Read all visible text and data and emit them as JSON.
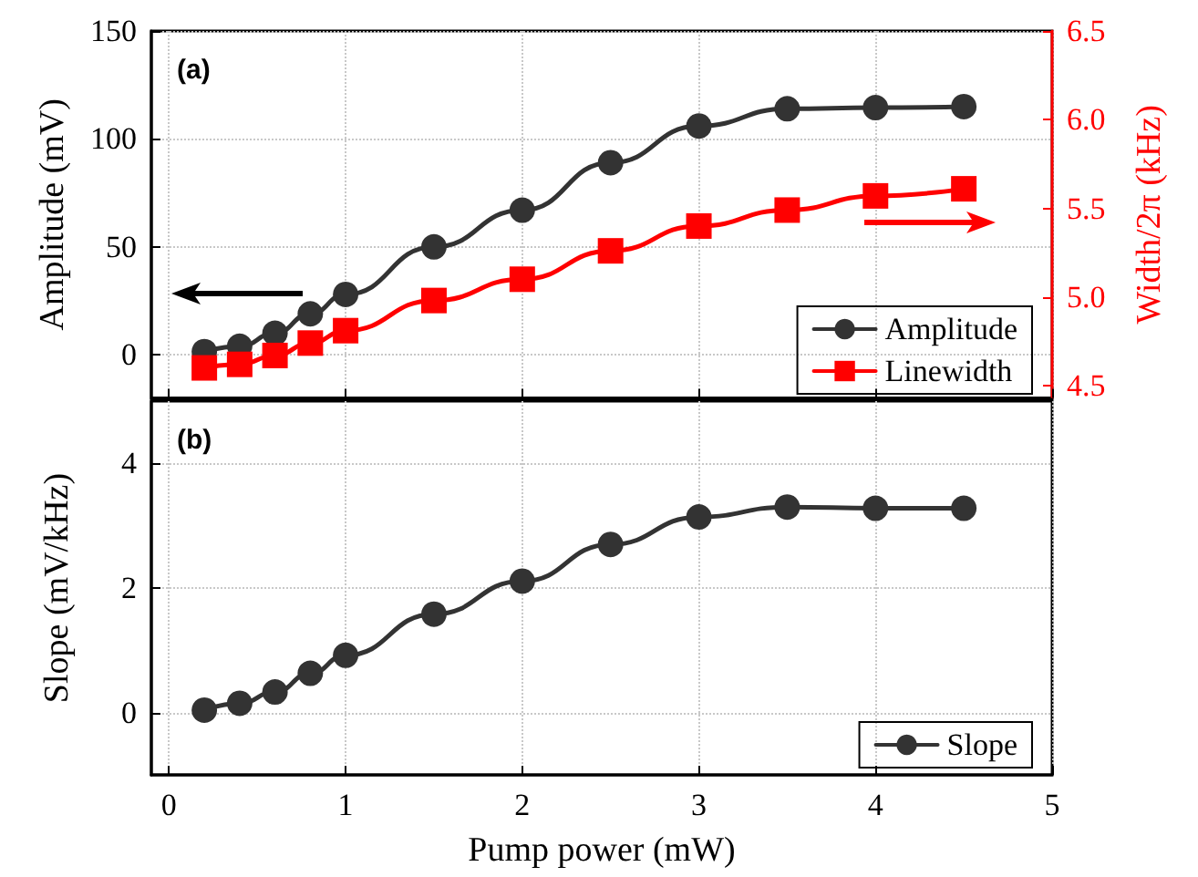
{
  "chart_data": [
    {
      "type": "line",
      "title": "(a)",
      "ylabel": "Amplitude (mV)",
      "y2label": "Width/2π (kHz)",
      "x": [
        0.2,
        0.4,
        0.6,
        0.8,
        1,
        1.5,
        2,
        2.5,
        3,
        3.5,
        4,
        4.5
      ],
      "series": [
        {
          "name": "Amplitude",
          "color": "#333333",
          "marker": "circle",
          "values": [
            1.5,
            4,
            10,
            19,
            28,
            50,
            67,
            89,
            106,
            114,
            114.5,
            115
          ]
        },
        {
          "name": "Linewidth",
          "color": "#ff0000",
          "marker": "square",
          "axis": "y2",
          "values": [
            4.6,
            4.62,
            4.67,
            4.74,
            4.81,
            4.98,
            5.1,
            5.26,
            5.4,
            5.49,
            5.57,
            5.61
          ]
        }
      ],
      "xlim": [
        -0.1,
        5
      ],
      "xticks": [
        0,
        1,
        2,
        3,
        4,
        5
      ],
      "ylim": [
        -20,
        150
      ],
      "yticks": [
        0,
        50,
        100,
        150
      ],
      "y2lim": [
        4.43,
        6.5
      ],
      "y2ticks": [
        4.5,
        {
          "value": 5,
          "label": "5.0"
        },
        5.5,
        {
          "value": 6,
          "label": "6.0"
        },
        6.5
      ],
      "tick_labels": "y",
      "grid": true,
      "legend": "bottom right",
      "line_style": "solid"
    },
    {
      "type": "line",
      "title": "(b)",
      "xlabel": "Pump power (mW)",
      "ylabel": "Slope (mV/kHz)",
      "x": [
        0.2,
        0.4,
        0.6,
        0.8,
        1,
        1.5,
        2,
        2.5,
        3,
        3.5,
        4,
        4.5
      ],
      "series": [
        {
          "name": "Slope",
          "color": "#333333",
          "marker": "circle",
          "values": [
            0.04,
            0.15,
            0.33,
            0.63,
            0.92,
            1.58,
            2.11,
            2.7,
            3.14,
            3.3,
            3.28,
            3.28
          ]
        }
      ],
      "xlim": [
        -0.1,
        5
      ],
      "xticks": [
        0,
        1,
        2,
        3,
        4,
        5
      ],
      "ylim": [
        -1,
        5
      ],
      "yticks": [
        0,
        2,
        4
      ],
      "grid": true,
      "legend": "bottom right",
      "line_style": "solid"
    }
  ]
}
